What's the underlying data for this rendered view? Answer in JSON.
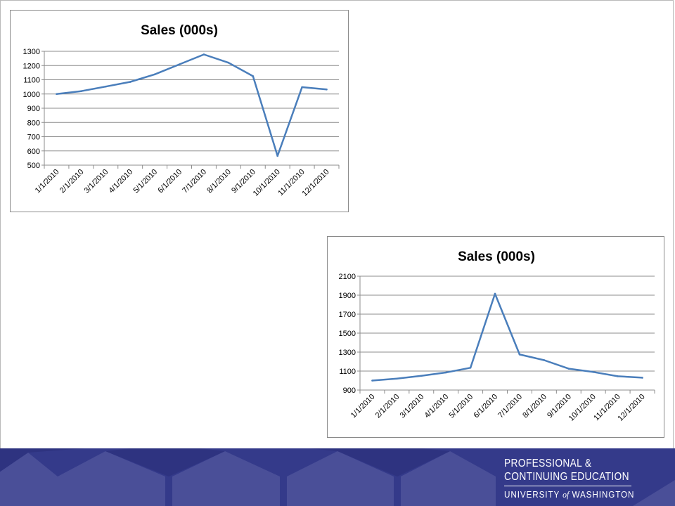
{
  "chart_data": [
    {
      "type": "line",
      "title": "Sales (000s)",
      "categories": [
        "1/1/2010",
        "2/1/2010",
        "3/1/2010",
        "4/1/2010",
        "5/1/2010",
        "6/1/2010",
        "7/1/2010",
        "8/1/2010",
        "9/1/2010",
        "10/1/2010",
        "11/1/2010",
        "12/1/2010"
      ],
      "values": [
        1000,
        1020,
        1052,
        1085,
        1138,
        1208,
        1278,
        1220,
        1125,
        565,
        1048,
        1032
      ],
      "ylim": [
        500,
        1300
      ],
      "yticks": [
        500,
        600,
        700,
        800,
        900,
        1000,
        1100,
        1200,
        1300
      ],
      "grid": true,
      "line_color": "#4a7ebb"
    },
    {
      "type": "line",
      "title": "Sales (000s)",
      "categories": [
        "1/1/2010",
        "2/1/2010",
        "3/1/2010",
        "4/1/2010",
        "5/1/2010",
        "6/1/2010",
        "7/1/2010",
        "8/1/2010",
        "9/1/2010",
        "10/1/2010",
        "11/1/2010",
        "12/1/2010"
      ],
      "values": [
        1000,
        1020,
        1050,
        1085,
        1135,
        1915,
        1275,
        1215,
        1125,
        1090,
        1045,
        1030
      ],
      "ylim": [
        900,
        2100
      ],
      "yticks": [
        900,
        1100,
        1300,
        1500,
        1700,
        1900,
        2100
      ],
      "grid": true,
      "line_color": "#4a7ebb"
    }
  ],
  "footer": {
    "line1": "PROFESSIONAL &",
    "line2": "CONTINUING EDUCATION",
    "uw_pre": "UNIVERSITY",
    "uw_of": "of",
    "uw_post": "WASHINGTON",
    "background": "#343a8a"
  }
}
